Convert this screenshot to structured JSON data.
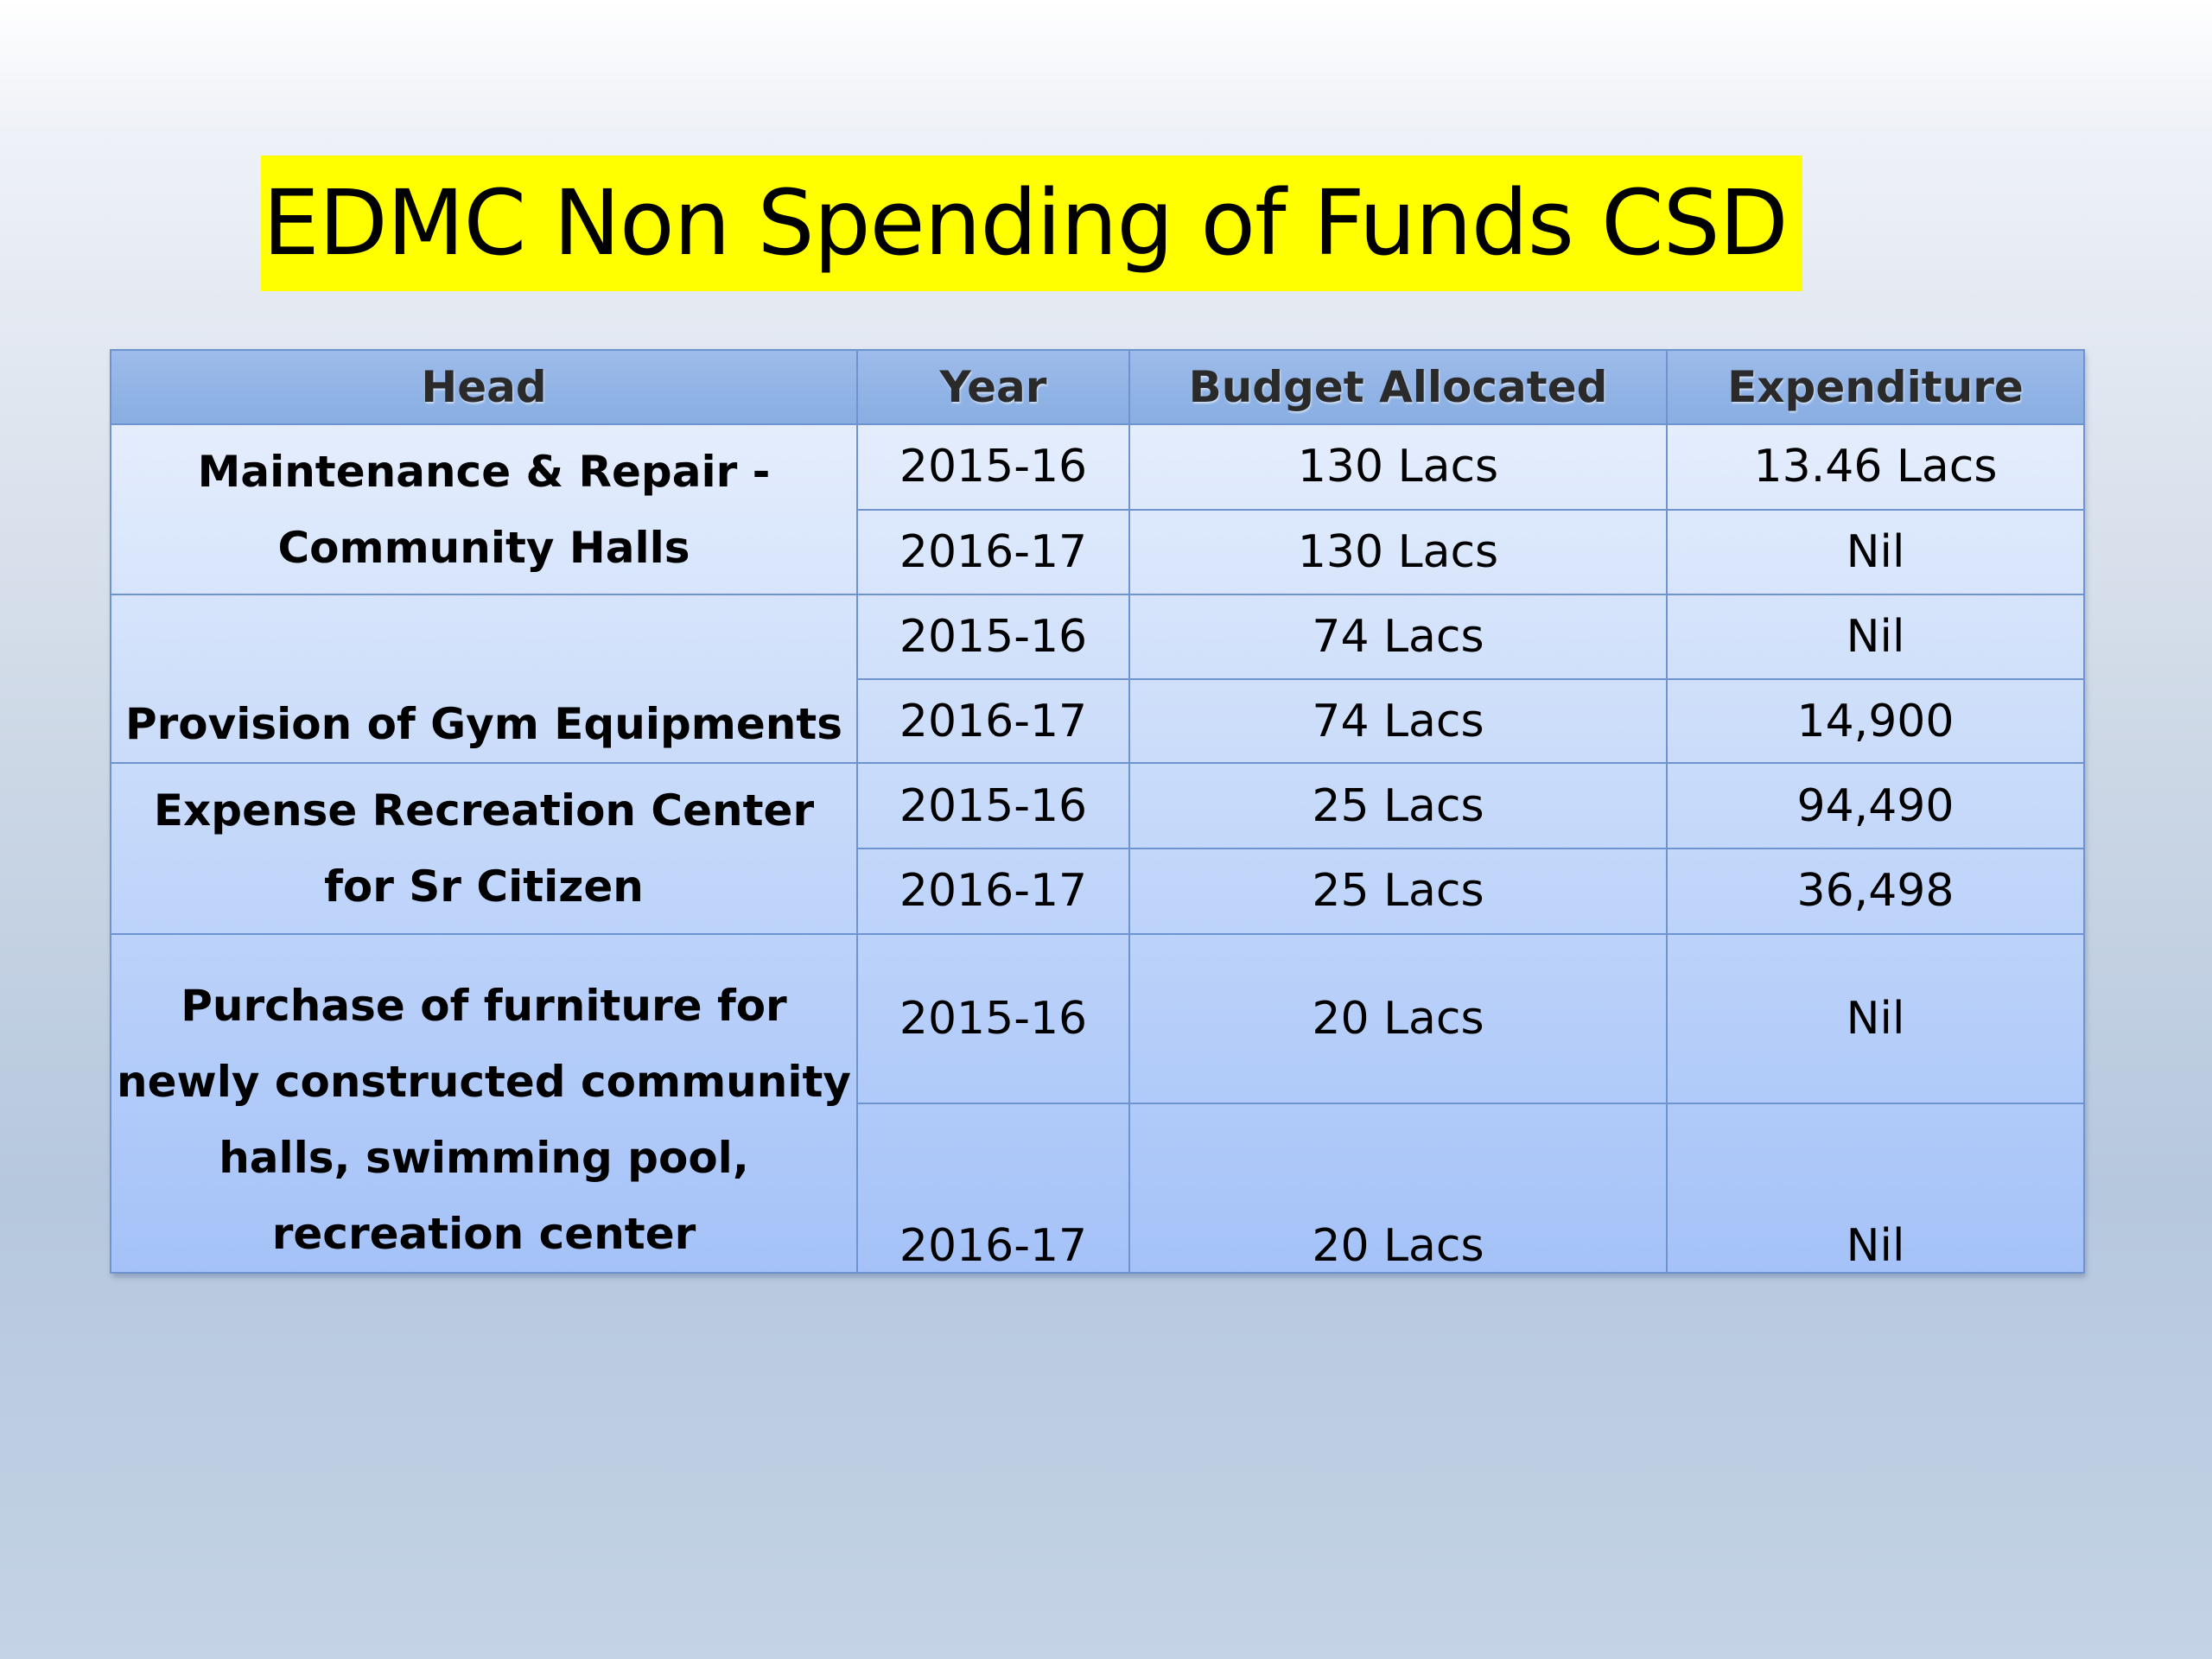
{
  "title": "EDMC Non Spending of Funds CSD",
  "colors": {
    "title_highlight": "#ffff00",
    "header_fill": "#8fb2e6",
    "grid_line": "#6f93cf"
  },
  "table": {
    "columns": [
      "Head",
      "Year",
      "Budget Allocated",
      "Expenditure"
    ],
    "groups": [
      {
        "head": "Maintenance & Repair - Community Halls",
        "rows": [
          {
            "year": "2015-16",
            "budget": "130 Lacs",
            "expenditure": "13.46 Lacs"
          },
          {
            "year": "2016-17",
            "budget": "130 Lacs",
            "expenditure": "Nil"
          }
        ]
      },
      {
        "head": "Provision of Gym Equipments",
        "rows": [
          {
            "year": "2015-16",
            "budget": "74 Lacs",
            "expenditure": "Nil"
          },
          {
            "year": "2016-17",
            "budget": "74 Lacs",
            "expenditure": "14,900"
          }
        ]
      },
      {
        "head": "Expense Recreation Center for Sr Citizen",
        "rows": [
          {
            "year": "2015-16",
            "budget": "25 Lacs",
            "expenditure": "94,490"
          },
          {
            "year": "2016-17",
            "budget": "25 Lacs",
            "expenditure": "36,498"
          }
        ]
      },
      {
        "head": "Purchase of furniture for newly constructed community halls, swimming pool, recreation center",
        "rows": [
          {
            "year": "2015-16",
            "budget": "20 Lacs",
            "expenditure": "Nil"
          },
          {
            "year": "2016-17",
            "budget": "20 Lacs",
            "expenditure": "Nil"
          }
        ]
      }
    ]
  }
}
